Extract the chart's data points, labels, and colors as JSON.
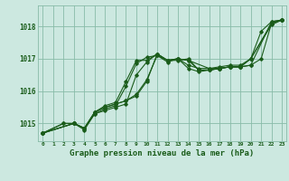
{
  "xlabel": "Graphe pression niveau de la mer (hPa)",
  "background_color": "#cce8e0",
  "grid_color": "#88bba8",
  "line_color": "#1a5c1a",
  "xlim": [
    -0.5,
    23.4
  ],
  "ylim": [
    1014.45,
    1018.65
  ],
  "yticks": [
    1015,
    1016,
    1017,
    1018
  ],
  "xticks": [
    0,
    1,
    2,
    3,
    4,
    5,
    6,
    7,
    8,
    9,
    10,
    11,
    12,
    13,
    14,
    15,
    16,
    17,
    18,
    19,
    20,
    21,
    22,
    23
  ],
  "lines": [
    {
      "x": [
        0,
        2,
        3,
        4,
        5,
        6,
        7,
        8,
        9,
        10,
        11,
        12,
        13,
        14,
        15,
        16,
        17,
        18,
        19,
        20,
        21,
        22,
        23
      ],
      "y": [
        1014.7,
        1015.0,
        1015.0,
        1014.85,
        1015.35,
        1015.5,
        1015.6,
        1015.7,
        1015.85,
        1016.3,
        1017.15,
        1016.95,
        1016.95,
        1017.0,
        1016.65,
        1016.65,
        1016.7,
        1016.75,
        1016.75,
        1016.8,
        1017.0,
        1018.1,
        1018.2
      ]
    },
    {
      "x": [
        0,
        2,
        3,
        4,
        5,
        6,
        7,
        8,
        9,
        10,
        11,
        12,
        13,
        14,
        15,
        16,
        17,
        18,
        19,
        20,
        22,
        23
      ],
      "y": [
        1014.7,
        1015.0,
        1015.0,
        1014.85,
        1015.35,
        1015.5,
        1015.6,
        1015.7,
        1015.9,
        1016.35,
        1017.1,
        1016.95,
        1017.0,
        1016.95,
        1016.65,
        1016.65,
        1016.7,
        1016.75,
        1016.75,
        1016.8,
        1018.15,
        1018.2
      ]
    },
    {
      "x": [
        0,
        3,
        4,
        5,
        6,
        7,
        8,
        9,
        10,
        11,
        12,
        13,
        14,
        16,
        17,
        18,
        19,
        20,
        21,
        22,
        23
      ],
      "y": [
        1014.7,
        1015.0,
        1014.85,
        1015.35,
        1015.55,
        1015.65,
        1016.3,
        1016.95,
        1016.95,
        1017.15,
        1016.95,
        1017.0,
        1016.95,
        1016.7,
        1016.75,
        1016.8,
        1016.8,
        1017.0,
        1017.85,
        1018.15,
        1018.2
      ]
    },
    {
      "x": [
        0,
        3,
        4,
        5,
        6,
        7,
        8,
        9,
        10,
        11,
        12,
        13,
        14,
        15,
        16,
        17,
        18,
        19,
        20,
        22,
        23
      ],
      "y": [
        1014.7,
        1015.0,
        1014.8,
        1015.3,
        1015.4,
        1015.5,
        1015.6,
        1016.5,
        1016.9,
        1017.15,
        1016.95,
        1017.0,
        1016.8,
        1016.7,
        1016.7,
        1016.7,
        1016.75,
        1016.75,
        1017.0,
        1018.1,
        1018.2
      ]
    },
    {
      "x": [
        0,
        3,
        4,
        5,
        6,
        7,
        8,
        9,
        10,
        11,
        12,
        13,
        14,
        15,
        16,
        17,
        18,
        19,
        20,
        22,
        23
      ],
      "y": [
        1014.7,
        1015.0,
        1014.85,
        1015.3,
        1015.45,
        1015.55,
        1016.15,
        1016.85,
        1017.05,
        1017.1,
        1016.9,
        1017.0,
        1016.7,
        1016.6,
        1016.65,
        1016.7,
        1016.75,
        1016.75,
        1017.0,
        1018.05,
        1018.2
      ]
    }
  ]
}
